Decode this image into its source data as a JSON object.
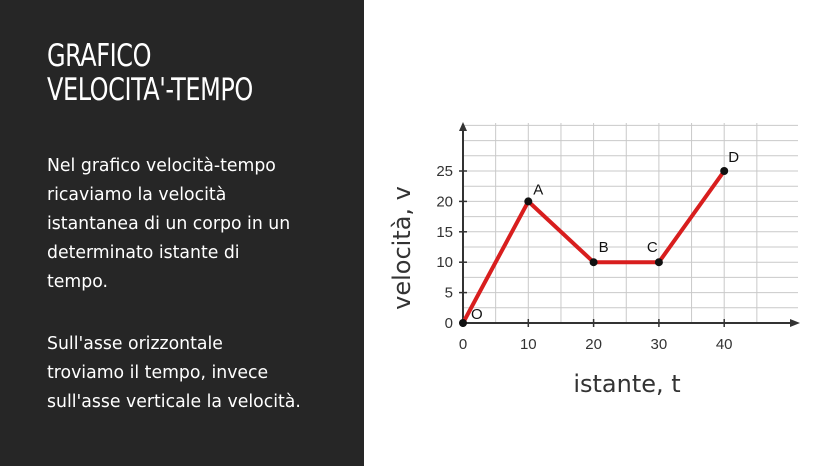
{
  "slide": {
    "title_lines": [
      "GRAFICO",
      "VELOCITA'-TEMPO"
    ],
    "paragraph1_lines": [
      "Nel grafico velocità-tempo",
      "ricaviamo la velocità",
      "istantanea di un corpo in un",
      "determinato istante di",
      "tempo."
    ],
    "paragraph2_lines": [
      "Sull'asse orizzontale",
      "troviamo il tempo, invece",
      "sull'asse verticale la velocità."
    ],
    "colors": {
      "panel_bg": "#262626",
      "line": "#d81e1e",
      "point": "#111111"
    }
  },
  "chart_data": {
    "type": "line",
    "xlabel": "istante, t",
    "ylabel": "velocità, v",
    "x_ticks": [
      0,
      10,
      20,
      30,
      40
    ],
    "y_ticks": [
      0,
      5,
      10,
      15,
      20,
      25
    ],
    "xlim": [
      0,
      50
    ],
    "ylim": [
      0,
      30
    ],
    "grid": true,
    "series": [
      {
        "points": [
          {
            "label": "O",
            "x": 0,
            "y": 0
          },
          {
            "label": "A",
            "x": 10,
            "y": 20
          },
          {
            "label": "B",
            "x": 20,
            "y": 10
          },
          {
            "label": "C",
            "x": 30,
            "y": 10
          },
          {
            "label": "D",
            "x": 40,
            "y": 25
          }
        ]
      }
    ]
  }
}
